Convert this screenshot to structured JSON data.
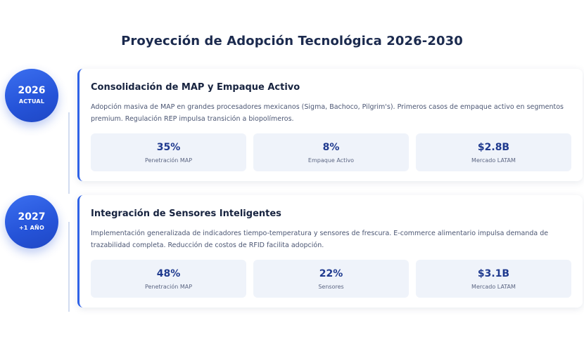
{
  "page": {
    "title": "Proyección de Adopción Tecnológica 2026-2030"
  },
  "colors": {
    "accent": "#2f62e6",
    "badge": "#2553d8",
    "metric_value": "#1f3a8f",
    "metric_bg": "#eff3fa"
  },
  "timeline": [
    {
      "year": "2026",
      "sublabel": "ACTUAL",
      "title": "Consolidación de MAP y Empaque Activo",
      "description": "Adopción masiva de MAP en grandes procesadores mexicanos (Sigma, Bachoco, Pilgrim's). Primeros casos de empaque activo en segmentos premium. Regulación REP impulsa transición a biopolímeros.",
      "metrics": [
        {
          "value": "35%",
          "label": "Penetración MAP"
        },
        {
          "value": "8%",
          "label": "Empaque Activo"
        },
        {
          "value": "$2.8B",
          "label": "Mercado LATAM"
        }
      ]
    },
    {
      "year": "2027",
      "sublabel": "+1 AÑO",
      "title": "Integración de Sensores Inteligentes",
      "description": "Implementación generalizada de indicadores tiempo-temperatura y sensores de frescura. E-commerce alimentario impulsa demanda de trazabilidad completa. Reducción de costos de RFID facilita adopción.",
      "metrics": [
        {
          "value": "48%",
          "label": "Penetración MAP"
        },
        {
          "value": "22%",
          "label": "Sensores"
        },
        {
          "value": "$3.1B",
          "label": "Mercado LATAM"
        }
      ]
    }
  ]
}
